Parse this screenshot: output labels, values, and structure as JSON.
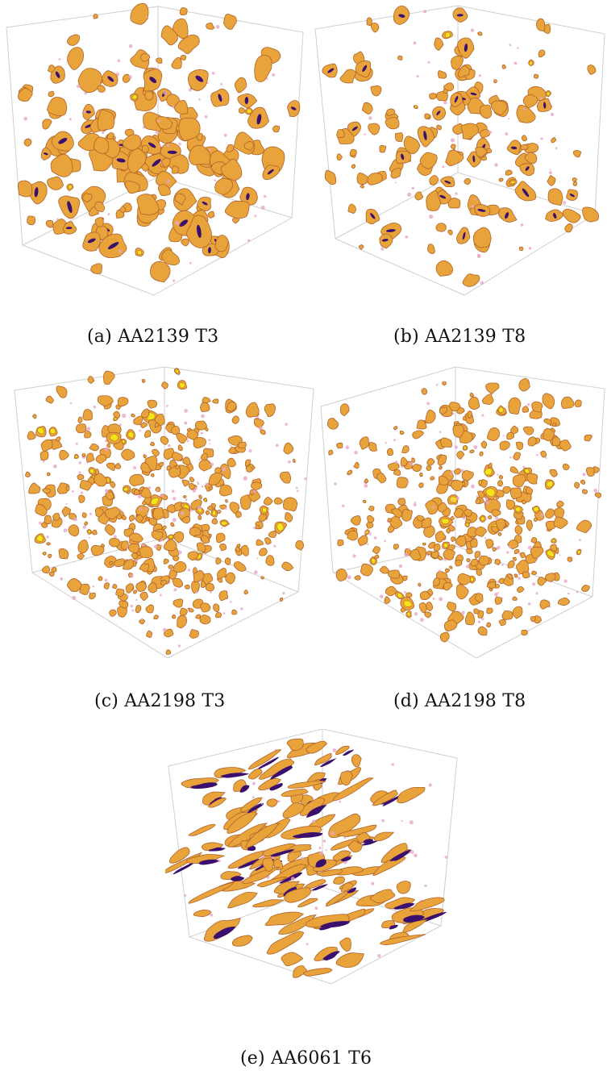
{
  "figures": [
    {
      "id": "a",
      "caption": "(a)  AA2139 T3",
      "palette": "dense",
      "seed": 11,
      "count": 260
    },
    {
      "id": "b",
      "caption": "(b)  AA2139 T8",
      "palette": "sparse",
      "seed": 23,
      "count": 200
    },
    {
      "id": "c",
      "caption": "(c)  AA2198 T3",
      "palette": "fine",
      "seed": 37,
      "count": 520
    },
    {
      "id": "d",
      "caption": "(d)  AA2198 T8",
      "palette": "fine",
      "seed": 51,
      "count": 460
    },
    {
      "id": "e",
      "caption": "(e)  AA6061 T6",
      "palette": "elongated",
      "seed": 73,
      "count": 170
    }
  ],
  "colors": {
    "particle": "#e8a33a",
    "particle_edge": "#b0632c",
    "highlight": "#f3e614",
    "dark": "#3a0f6e",
    "halo": "#e7a6c8"
  }
}
